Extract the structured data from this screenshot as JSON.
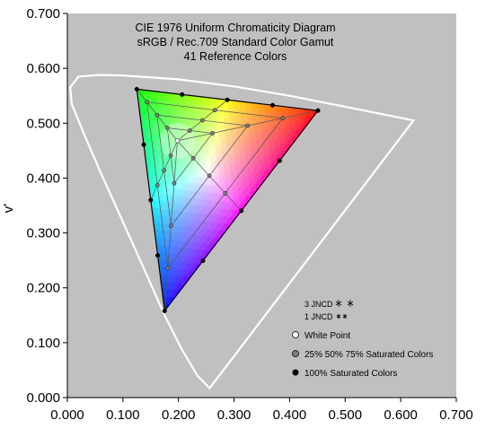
{
  "chart_data": {
    "type": "scatter",
    "title_lines": [
      "CIE 1976 Uniform Chromaticity Diagram",
      "sRGB / Rec.709 Standard Color Gamut",
      "41 Reference Colors"
    ],
    "xlabel": "",
    "ylabel": "v'",
    "xlim": [
      0,
      0.7
    ],
    "ylim": [
      0,
      0.7
    ],
    "x_ticks": [
      "0.000",
      "0.100",
      "0.200",
      "0.300",
      "0.400",
      "0.500",
      "0.600",
      "0.700"
    ],
    "y_ticks": [
      "0.000",
      "0.100",
      "0.200",
      "0.300",
      "0.400",
      "0.500",
      "0.600",
      "0.700"
    ],
    "grid": false,
    "plot_background": "#c0c0c0",
    "spectral_locus": [
      [
        0.256,
        0.017
      ],
      [
        0.234,
        0.04
      ],
      [
        0.205,
        0.09
      ],
      [
        0.175,
        0.15
      ],
      [
        0.14,
        0.23
      ],
      [
        0.1,
        0.32
      ],
      [
        0.06,
        0.41
      ],
      [
        0.03,
        0.48
      ],
      [
        0.008,
        0.535
      ],
      [
        0.005,
        0.565
      ],
      [
        0.02,
        0.585
      ],
      [
        0.06,
        0.588
      ],
      [
        0.1,
        0.587
      ],
      [
        0.2,
        0.58
      ],
      [
        0.3,
        0.567
      ],
      [
        0.4,
        0.55
      ],
      [
        0.5,
        0.53
      ],
      [
        0.623,
        0.505
      ]
    ],
    "gamut_vertices": {
      "red": [
        0.451,
        0.523
      ],
      "green": [
        0.125,
        0.562
      ],
      "blue": [
        0.175,
        0.158
      ]
    },
    "white_point": [
      0.198,
      0.468
    ],
    "saturation_levels": [
      0.25,
      0.5,
      0.75,
      1.0
    ],
    "legend": {
      "jncd_3": "3 JNCD",
      "jncd_1": "1 JNCD",
      "white_point": "White Point",
      "partial": "25% 50% 75% Saturated Colors",
      "full": "100% Saturated Colors"
    },
    "colors": {
      "full_marker": "#000000",
      "partial_marker": "#808080",
      "white_marker": "#ffffff",
      "locus": "#ffffff"
    }
  }
}
